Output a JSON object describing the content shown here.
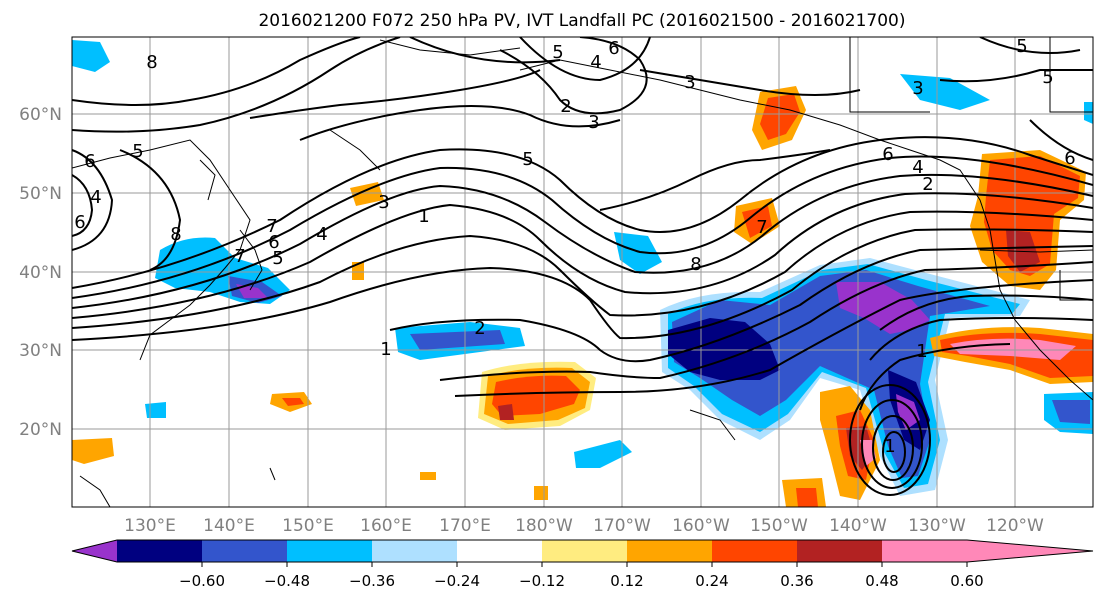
{
  "title": "2016021200 F072 250 hPa PV, IVT Landfall PC (2016021500 - 2016021700)",
  "lat_labels": [
    "60°N",
    "50°N",
    "40°N",
    "30°N",
    "20°N"
  ],
  "lon_labels": [
    "130°E",
    "140°E",
    "150°E",
    "160°E",
    "170°E",
    "180°W",
    "170°W",
    "160°W",
    "150°W",
    "140°W",
    "130°W",
    "120°W"
  ],
  "colorbar": {
    "colors": [
      "#9933cc",
      "#000080",
      "#3355cc",
      "#00bfff",
      "#aee0ff",
      "#ffffff",
      "#ffec80",
      "#ffa500",
      "#ff4500",
      "#b22222",
      "#ff88b8"
    ],
    "tick_labels": [
      "−0.60",
      "−0.48",
      "−0.36",
      "−0.24",
      "−0.12",
      "0.12",
      "0.24",
      "0.36",
      "0.48",
      "0.60"
    ]
  },
  "contour_labels": [
    "8",
    "6",
    "5",
    "4",
    "2",
    "3",
    "6",
    "5",
    "4",
    "3",
    "6",
    "7",
    "5",
    "8",
    "6",
    "7",
    "5",
    "4",
    "3",
    "1",
    "1",
    "2",
    "5",
    "8",
    "7",
    "6",
    "5",
    "4",
    "3",
    "2",
    "1",
    "6",
    "1"
  ]
}
